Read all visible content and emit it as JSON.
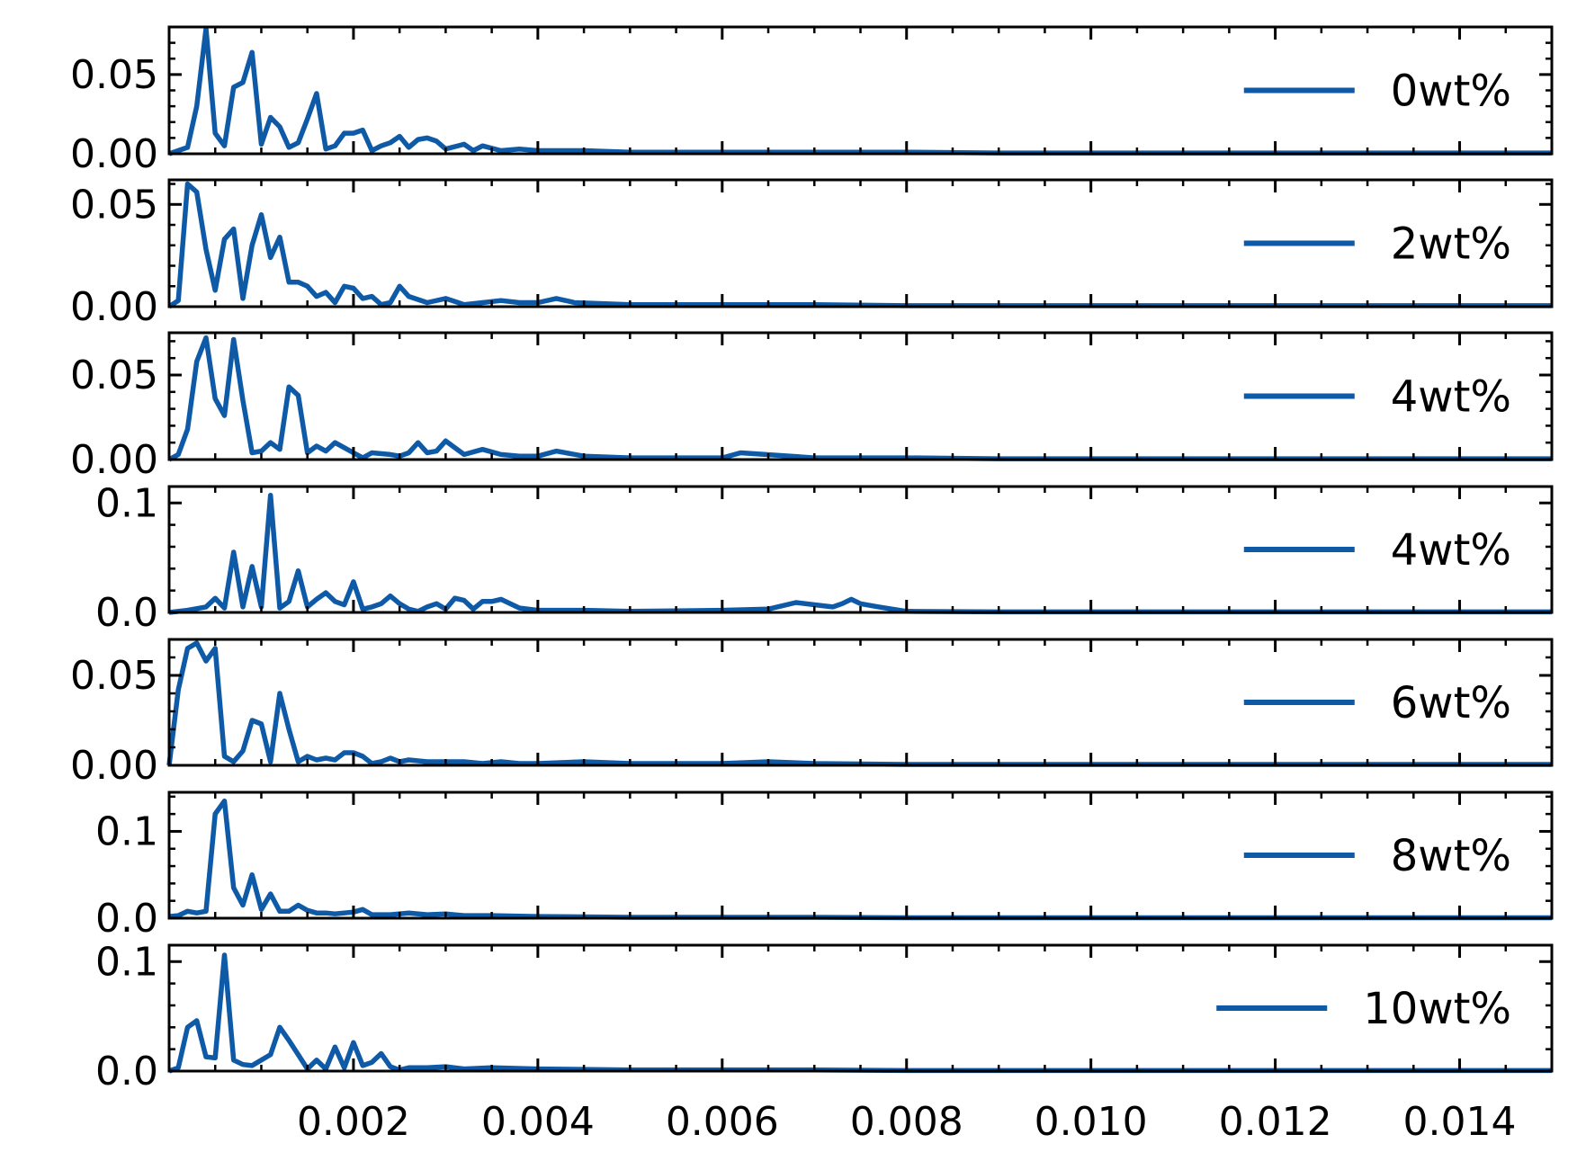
{
  "figure": {
    "line_color": "#0e5aa7",
    "x_ticks": [
      0.002,
      0.004,
      0.006,
      0.008,
      0.01,
      0.012,
      0.014
    ],
    "x_tick_labels": [
      "0.002",
      "0.004",
      "0.006",
      "0.008",
      "0.010",
      "0.012",
      "0.014"
    ]
  },
  "chart_data": [
    {
      "type": "line",
      "legend": "0wt%",
      "legend_position": "right",
      "xlim": [
        0.0,
        0.015
      ],
      "ylim": [
        0.0,
        0.08
      ],
      "y_ticks": [
        0.0,
        0.05
      ],
      "y_tick_labels": [
        "0.00",
        "0.05"
      ],
      "x": [
        0.0,
        0.0002,
        0.0003,
        0.0004,
        0.0005,
        0.0006,
        0.0007,
        0.0008,
        0.0009,
        0.001,
        0.0011,
        0.0012,
        0.0013,
        0.0014,
        0.0015,
        0.0016,
        0.0017,
        0.0018,
        0.0019,
        0.002,
        0.0021,
        0.0022,
        0.0023,
        0.0024,
        0.0025,
        0.0026,
        0.0027,
        0.0028,
        0.0029,
        0.003,
        0.0032,
        0.0033,
        0.0034,
        0.0036,
        0.0038,
        0.004,
        0.0045,
        0.005,
        0.006,
        0.007,
        0.008,
        0.009,
        0.01,
        0.011,
        0.012,
        0.013,
        0.014,
        0.015
      ],
      "y": [
        0.0,
        0.004,
        0.03,
        0.079,
        0.013,
        0.005,
        0.042,
        0.045,
        0.064,
        0.006,
        0.023,
        0.017,
        0.004,
        0.007,
        0.022,
        0.038,
        0.003,
        0.005,
        0.013,
        0.013,
        0.015,
        0.002,
        0.005,
        0.007,
        0.011,
        0.004,
        0.009,
        0.01,
        0.008,
        0.003,
        0.006,
        0.002,
        0.005,
        0.002,
        0.003,
        0.002,
        0.002,
        0.001,
        0.001,
        0.001,
        0.001,
        0.0005,
        0.0005,
        0.0005,
        0.0005,
        0.0005,
        0.0005,
        0.0005
      ]
    },
    {
      "type": "line",
      "legend": "2wt%",
      "legend_position": "right",
      "xlim": [
        0.0,
        0.015
      ],
      "ylim": [
        0.0,
        0.062
      ],
      "y_ticks": [
        0.0,
        0.05
      ],
      "y_tick_labels": [
        "0.00",
        "0.05"
      ],
      "x": [
        0.0,
        0.0001,
        0.0002,
        0.0003,
        0.0004,
        0.0005,
        0.0006,
        0.0007,
        0.0008,
        0.0009,
        0.001,
        0.0011,
        0.0012,
        0.0013,
        0.0014,
        0.0015,
        0.0016,
        0.0017,
        0.0018,
        0.0019,
        0.002,
        0.0021,
        0.0022,
        0.0023,
        0.0024,
        0.0025,
        0.0026,
        0.0028,
        0.003,
        0.0032,
        0.0034,
        0.0036,
        0.0038,
        0.004,
        0.0042,
        0.0044,
        0.005,
        0.006,
        0.007,
        0.008,
        0.009,
        0.01,
        0.011,
        0.012,
        0.013,
        0.014,
        0.015
      ],
      "y": [
        0.0,
        0.003,
        0.06,
        0.056,
        0.028,
        0.008,
        0.033,
        0.038,
        0.004,
        0.03,
        0.045,
        0.024,
        0.034,
        0.012,
        0.012,
        0.01,
        0.005,
        0.007,
        0.002,
        0.01,
        0.009,
        0.004,
        0.005,
        0.001,
        0.002,
        0.01,
        0.005,
        0.002,
        0.004,
        0.001,
        0.002,
        0.003,
        0.002,
        0.002,
        0.004,
        0.002,
        0.001,
        0.001,
        0.001,
        0.0005,
        0.0005,
        0.0005,
        0.0005,
        0.0005,
        0.0005,
        0.0005,
        0.0005
      ]
    },
    {
      "type": "line",
      "legend": "4wt%",
      "legend_position": "right",
      "xlim": [
        0.0,
        0.015
      ],
      "ylim": [
        0.0,
        0.075
      ],
      "y_ticks": [
        0.0,
        0.05
      ],
      "y_tick_labels": [
        "0.00",
        "0.05"
      ],
      "x": [
        0.0,
        0.0001,
        0.0002,
        0.0003,
        0.0004,
        0.0005,
        0.0006,
        0.0007,
        0.0008,
        0.0009,
        0.001,
        0.0011,
        0.0012,
        0.0013,
        0.0014,
        0.0015,
        0.0016,
        0.0017,
        0.0018,
        0.0019,
        0.002,
        0.0021,
        0.0022,
        0.0024,
        0.0025,
        0.0026,
        0.0027,
        0.0028,
        0.0029,
        0.003,
        0.0032,
        0.0034,
        0.0036,
        0.0038,
        0.004,
        0.0042,
        0.0045,
        0.005,
        0.006,
        0.0062,
        0.007,
        0.008,
        0.009,
        0.01,
        0.011,
        0.012,
        0.013,
        0.014,
        0.015
      ],
      "y": [
        0.0,
        0.003,
        0.018,
        0.058,
        0.072,
        0.036,
        0.026,
        0.071,
        0.035,
        0.004,
        0.005,
        0.01,
        0.006,
        0.043,
        0.038,
        0.004,
        0.008,
        0.005,
        0.01,
        0.007,
        0.004,
        0.001,
        0.004,
        0.003,
        0.002,
        0.004,
        0.01,
        0.004,
        0.005,
        0.011,
        0.003,
        0.006,
        0.003,
        0.002,
        0.002,
        0.005,
        0.002,
        0.001,
        0.001,
        0.004,
        0.001,
        0.001,
        0.0005,
        0.0005,
        0.0005,
        0.0005,
        0.0005,
        0.0005,
        0.0005
      ]
    },
    {
      "type": "line",
      "legend": "4wt%",
      "legend_position": "right",
      "xlim": [
        0.0,
        0.015
      ],
      "ylim": [
        0.0,
        0.115
      ],
      "y_ticks": [
        0.0,
        0.1
      ],
      "y_tick_labels": [
        "0.0",
        "0.1"
      ],
      "x": [
        0.0,
        0.0002,
        0.0004,
        0.0005,
        0.0006,
        0.0007,
        0.0008,
        0.0009,
        0.001,
        0.0011,
        0.0012,
        0.0013,
        0.0014,
        0.0015,
        0.0016,
        0.0017,
        0.0018,
        0.0019,
        0.002,
        0.0021,
        0.0022,
        0.0023,
        0.0024,
        0.0025,
        0.0026,
        0.0027,
        0.0028,
        0.0029,
        0.003,
        0.0031,
        0.0032,
        0.0033,
        0.0034,
        0.0035,
        0.0036,
        0.0038,
        0.004,
        0.0045,
        0.005,
        0.006,
        0.0065,
        0.0068,
        0.007,
        0.0072,
        0.0073,
        0.0074,
        0.0075,
        0.0077,
        0.008,
        0.009,
        0.01,
        0.011,
        0.012,
        0.013,
        0.014,
        0.015
      ],
      "y": [
        0.0,
        0.002,
        0.005,
        0.013,
        0.004,
        0.055,
        0.005,
        0.042,
        0.005,
        0.107,
        0.004,
        0.01,
        0.038,
        0.005,
        0.012,
        0.018,
        0.01,
        0.007,
        0.028,
        0.003,
        0.005,
        0.008,
        0.015,
        0.008,
        0.003,
        0.001,
        0.005,
        0.008,
        0.003,
        0.013,
        0.011,
        0.003,
        0.01,
        0.01,
        0.012,
        0.004,
        0.002,
        0.002,
        0.001,
        0.002,
        0.003,
        0.009,
        0.007,
        0.005,
        0.008,
        0.012,
        0.008,
        0.005,
        0.001,
        0.0005,
        0.0005,
        0.0005,
        0.0005,
        0.0005,
        0.0005,
        0.0005
      ]
    },
    {
      "type": "line",
      "legend": "6wt%",
      "legend_position": "right",
      "xlim": [
        0.0,
        0.015
      ],
      "ylim": [
        0.0,
        0.07
      ],
      "y_ticks": [
        0.0,
        0.05
      ],
      "y_tick_labels": [
        "0.00",
        "0.05"
      ],
      "x": [
        0.0,
        0.0001,
        0.0002,
        0.0003,
        0.0004,
        0.0005,
        0.0006,
        0.0007,
        0.0008,
        0.0009,
        0.001,
        0.0011,
        0.0012,
        0.0013,
        0.0014,
        0.0015,
        0.0016,
        0.0017,
        0.0018,
        0.0019,
        0.002,
        0.0021,
        0.0022,
        0.0023,
        0.0024,
        0.0025,
        0.0026,
        0.0028,
        0.003,
        0.0032,
        0.0034,
        0.0036,
        0.0038,
        0.004,
        0.0045,
        0.005,
        0.006,
        0.0065,
        0.007,
        0.008,
        0.009,
        0.01,
        0.011,
        0.012,
        0.013,
        0.014,
        0.015
      ],
      "y": [
        0.0,
        0.042,
        0.065,
        0.068,
        0.058,
        0.065,
        0.005,
        0.002,
        0.008,
        0.025,
        0.023,
        0.002,
        0.04,
        0.02,
        0.002,
        0.005,
        0.003,
        0.004,
        0.003,
        0.007,
        0.007,
        0.005,
        0.001,
        0.002,
        0.004,
        0.002,
        0.003,
        0.002,
        0.002,
        0.002,
        0.001,
        0.002,
        0.001,
        0.001,
        0.002,
        0.001,
        0.001,
        0.002,
        0.001,
        0.0005,
        0.0005,
        0.0005,
        0.0005,
        0.0005,
        0.0005,
        0.0005,
        0.0005
      ]
    },
    {
      "type": "line",
      "legend": "8wt%",
      "legend_position": "right",
      "xlim": [
        0.0,
        0.015
      ],
      "ylim": [
        0.0,
        0.145
      ],
      "y_ticks": [
        0.0,
        0.1
      ],
      "y_tick_labels": [
        "0.0",
        "0.1"
      ],
      "x": [
        0.0,
        0.0001,
        0.0002,
        0.0003,
        0.0004,
        0.0005,
        0.0006,
        0.0007,
        0.0008,
        0.0009,
        0.001,
        0.0011,
        0.0012,
        0.0013,
        0.0014,
        0.0015,
        0.0016,
        0.0017,
        0.0018,
        0.0019,
        0.002,
        0.0021,
        0.0022,
        0.0024,
        0.0026,
        0.0028,
        0.003,
        0.0032,
        0.0035,
        0.004,
        0.005,
        0.006,
        0.007,
        0.008,
        0.009,
        0.01,
        0.011,
        0.012,
        0.013,
        0.014,
        0.015
      ],
      "y": [
        0.002,
        0.003,
        0.008,
        0.006,
        0.008,
        0.12,
        0.135,
        0.035,
        0.015,
        0.05,
        0.01,
        0.028,
        0.008,
        0.008,
        0.015,
        0.009,
        0.006,
        0.006,
        0.005,
        0.006,
        0.007,
        0.01,
        0.004,
        0.004,
        0.006,
        0.004,
        0.005,
        0.003,
        0.003,
        0.002,
        0.001,
        0.001,
        0.001,
        0.0005,
        0.0005,
        0.0005,
        0.0005,
        0.0005,
        0.0005,
        0.0005,
        0.0005
      ]
    },
    {
      "type": "line",
      "legend": "10wt%",
      "legend_position": "right",
      "xlim": [
        0.0,
        0.015
      ],
      "ylim": [
        0.0,
        0.115
      ],
      "y_ticks": [
        0.0,
        0.1
      ],
      "y_tick_labels": [
        "0.0",
        "0.1"
      ],
      "x": [
        0.0,
        0.0001,
        0.0002,
        0.0003,
        0.0004,
        0.0005,
        0.0006,
        0.0007,
        0.0008,
        0.0009,
        0.001,
        0.0011,
        0.0012,
        0.0013,
        0.0014,
        0.0015,
        0.0016,
        0.0017,
        0.0018,
        0.0019,
        0.002,
        0.0021,
        0.0022,
        0.0023,
        0.0024,
        0.0025,
        0.0026,
        0.0028,
        0.003,
        0.0032,
        0.0035,
        0.004,
        0.005,
        0.006,
        0.007,
        0.008,
        0.009,
        0.01,
        0.011,
        0.012,
        0.013,
        0.014,
        0.015
      ],
      "y": [
        0.0,
        0.003,
        0.04,
        0.046,
        0.013,
        0.012,
        0.106,
        0.01,
        0.006,
        0.005,
        0.01,
        0.015,
        0.04,
        0.028,
        0.015,
        0.002,
        0.01,
        0.002,
        0.022,
        0.003,
        0.026,
        0.005,
        0.008,
        0.016,
        0.004,
        0.001,
        0.003,
        0.003,
        0.004,
        0.002,
        0.003,
        0.002,
        0.001,
        0.001,
        0.001,
        0.0005,
        0.0005,
        0.0005,
        0.0005,
        0.0005,
        0.0005,
        0.0005,
        0.0005
      ]
    }
  ]
}
